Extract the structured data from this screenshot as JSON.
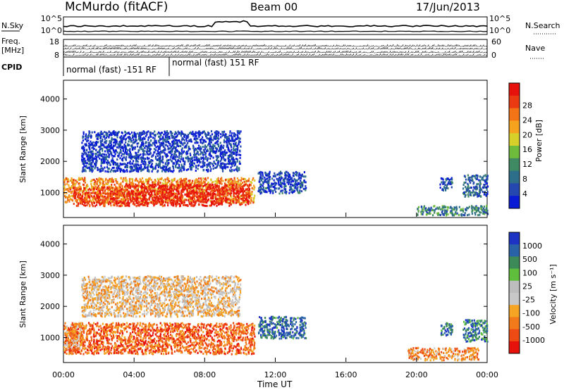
{
  "header": {
    "station": "McMurdo (fitACF)",
    "beam": "Beam 00",
    "date": "17/Jun/2013"
  },
  "noise_panel": {
    "left_label": "N.Sky",
    "left_ticks": [
      "10^5",
      "10^0"
    ],
    "right_label": "N.Search",
    "right_ticks": [
      "10^5",
      "10^0"
    ]
  },
  "freq_panel": {
    "label_line1": "Freq.",
    "label_line2": "[MHz]",
    "left_ticks": [
      "18",
      "8"
    ],
    "right_label": "Nave",
    "right_ticks": [
      "60",
      "0"
    ]
  },
  "cpid_panel": {
    "label": "CPID",
    "modes": [
      {
        "text": "normal (fast) -151 RF",
        "start_hour": 0,
        "end_hour": 6
      },
      {
        "text": "normal (fast) 151 RF",
        "start_hour": 6,
        "end_hour": 24
      }
    ]
  },
  "chart_data": [
    {
      "type": "heatmap",
      "parameter": "power",
      "ylabel": "Slant Range [km]",
      "y_ticks": [
        "1000",
        "2000",
        "3000",
        "4000"
      ],
      "ylim": [
        200,
        4600
      ],
      "colorbar_label": "Power [dB]",
      "colorbar_ticks": [
        "4",
        "8",
        "12",
        "16",
        "20",
        "24",
        "28"
      ],
      "colorbar_colors": [
        "#0a1bd6",
        "#2548b0",
        "#2d6f8a",
        "#3f8a63",
        "#6fbb3c",
        "#d7cf2a",
        "#f5a21f",
        "#f27416",
        "#ea3a12",
        "#e8120c"
      ],
      "regions": [
        {
          "t0": 0.0,
          "t1": 10.8,
          "r0": 700,
          "r1": 1500,
          "level": 0.7
        },
        {
          "t0": 3.5,
          "t1": 10.5,
          "r0": 600,
          "r1": 1300,
          "level": 0.95
        },
        {
          "t0": 0.5,
          "t1": 3.5,
          "r0": 600,
          "r1": 1200,
          "level": 0.85
        },
        {
          "t0": 11.0,
          "t1": 13.7,
          "r0": 1000,
          "r1": 1700,
          "level": 0.15
        },
        {
          "t0": 21.3,
          "t1": 22.0,
          "r0": 1100,
          "r1": 1500,
          "level": 0.15
        },
        {
          "t0": 22.6,
          "t1": 24.0,
          "r0": 900,
          "r1": 1600,
          "level": 0.2
        },
        {
          "t0": 1.0,
          "t1": 10.0,
          "r0": 1700,
          "r1": 3000,
          "level": 0.1
        },
        {
          "t0": 20.0,
          "t1": 24.0,
          "r0": 300,
          "r1": 600,
          "level": 0.3
        }
      ]
    },
    {
      "type": "heatmap",
      "parameter": "velocity",
      "ylabel": "Slant Range [km]",
      "y_ticks": [
        "1000",
        "2000",
        "3000",
        "4000"
      ],
      "ylim": [
        200,
        4600
      ],
      "colorbar_label": "Velocity [m s⁻¹]",
      "colorbar_ticks": [
        "1000",
        "500",
        "100",
        "25",
        "-25",
        "-100",
        "-500",
        "-1000"
      ],
      "colorbar_colors": [
        "#1c33c4",
        "#2a62a8",
        "#3c8a58",
        "#5fbf3c",
        "#bdbdbd",
        "#c8c8c8",
        "#f5a423",
        "#f27a1a",
        "#ee4a14",
        "#e8120c"
      ],
      "regions": [
        {
          "t0": 0.0,
          "t1": 10.8,
          "r0": 500,
          "r1": 1500,
          "level": 0.2
        },
        {
          "t0": 0.0,
          "t1": 1.0,
          "r0": 600,
          "r1": 1500,
          "level": 0.3
        },
        {
          "t0": 11.0,
          "t1": 13.7,
          "r0": 1000,
          "r1": 1700,
          "level": 0.85
        },
        {
          "t0": 21.3,
          "t1": 22.0,
          "r0": 1100,
          "r1": 1500,
          "level": 0.85
        },
        {
          "t0": 22.6,
          "t1": 24.0,
          "r0": 900,
          "r1": 1600,
          "level": 0.8
        },
        {
          "t0": 1.0,
          "t1": 10.0,
          "r0": 1700,
          "r1": 3000,
          "level": 0.4
        },
        {
          "t0": 19.5,
          "t1": 23.5,
          "r0": 300,
          "r1": 700,
          "level": 0.3
        }
      ]
    }
  ],
  "x_axis": {
    "label": "Time UT",
    "ticks": [
      "00:00",
      "04:00",
      "08:00",
      "12:00",
      "16:00",
      "20:00",
      "00:00"
    ],
    "range_hours": [
      0,
      24
    ]
  }
}
